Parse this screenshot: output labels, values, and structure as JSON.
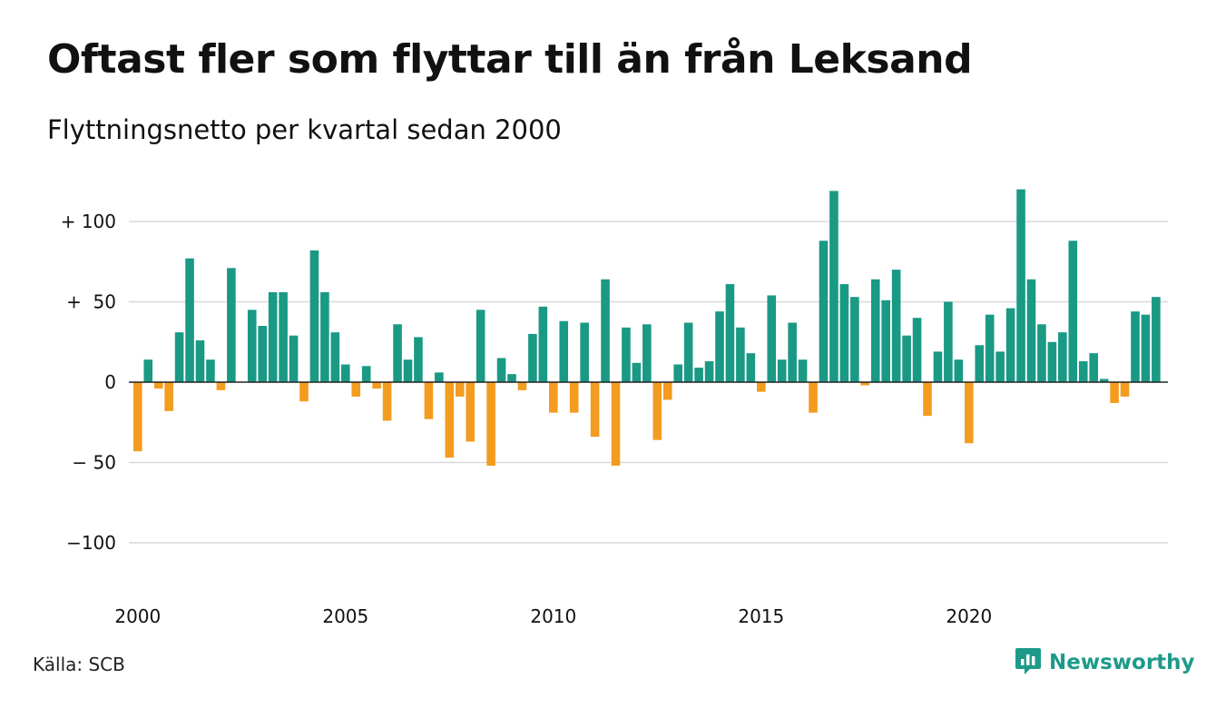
{
  "title": "Oftast fler som flyttar till än från Leksand",
  "subtitle": "Flyttningsnetto per kvartal sedan 2000",
  "source": "Källa: SCB",
  "brand": {
    "name": "Newsworthy",
    "icon": "newsworthy-logo-icon"
  },
  "colors": {
    "positive": "#1a9985",
    "negative": "#f39c1f",
    "grid": "#d9d9d9",
    "zero": "#222222"
  },
  "chart_data": {
    "type": "bar",
    "title": "",
    "xlabel": "",
    "ylabel": "",
    "x_ticks": [
      "2000",
      "2005",
      "2010",
      "2015",
      "2020"
    ],
    "y_ticks": [
      {
        "value": 100,
        "label": "+ 100"
      },
      {
        "value": 50,
        "label": "+  50"
      },
      {
        "value": 0,
        "label": "0"
      },
      {
        "value": -50,
        "label": "− 50"
      },
      {
        "value": -100,
        "label": "−100"
      }
    ],
    "ylim": [
      -120,
      120
    ],
    "grid": true,
    "start": "2000 Q1",
    "frequency": "quarter",
    "values": [
      -43,
      14,
      -4,
      -18,
      31,
      77,
      26,
      14,
      -5,
      71,
      0,
      45,
      35,
      56,
      56,
      29,
      -12,
      82,
      56,
      31,
      11,
      -9,
      10,
      -4,
      -24,
      36,
      14,
      28,
      -23,
      6,
      -47,
      -9,
      -37,
      45,
      -52,
      15,
      5,
      -5,
      30,
      47,
      -19,
      38,
      -19,
      37,
      -34,
      64,
      -52,
      34,
      12,
      36,
      -36,
      -11,
      11,
      37,
      9,
      13,
      44,
      61,
      34,
      18,
      -6,
      54,
      14,
      37,
      14,
      -19,
      88,
      119,
      61,
      53,
      -2,
      64,
      51,
      70,
      29,
      40,
      -21,
      19,
      50,
      14,
      -38,
      23,
      42,
      19,
      46,
      120,
      64,
      36,
      25,
      31,
      88,
      13,
      18,
      2,
      -13,
      -9,
      44,
      42,
      53
    ]
  }
}
